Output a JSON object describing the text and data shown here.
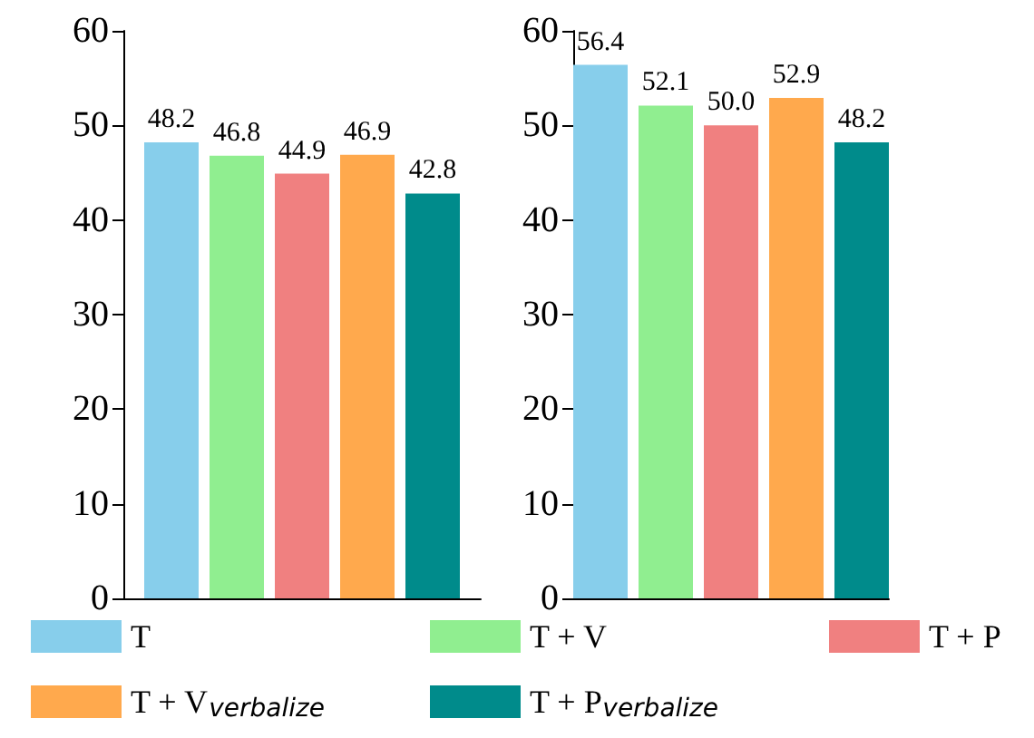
{
  "chart_data": [
    {
      "type": "bar",
      "categories": [
        null
      ],
      "ylim": [
        0,
        60
      ],
      "yticks": [
        0,
        10,
        20,
        30,
        40,
        50,
        60
      ],
      "data_labels": true,
      "grid": false,
      "legend": "bottom",
      "series": [
        {
          "name": "T",
          "color": "#87ceeb",
          "values": [
            48.2
          ]
        },
        {
          "name": "T + V",
          "color": "#90ee90",
          "values": [
            46.8
          ]
        },
        {
          "name": "T + P",
          "color": "#f08080",
          "values": [
            44.9
          ]
        },
        {
          "name": "T + V$_{verbalize}$",
          "color": "#ffa94d",
          "values": [
            46.9
          ]
        },
        {
          "name": "T + P$_{verbalize}$",
          "color": "#008b8b",
          "values": [
            42.8
          ]
        }
      ]
    },
    {
      "type": "bar",
      "categories": [
        null
      ],
      "ylim": [
        0,
        60
      ],
      "yticks": [
        0,
        10,
        20,
        30,
        40,
        50,
        60
      ],
      "data_labels": true,
      "grid": false,
      "series": [
        {
          "color": "#87ceeb",
          "values": [
            56.4
          ]
        },
        {
          "color": "#90ee90",
          "values": [
            52.1
          ]
        },
        {
          "color": "#f08080",
          "values": [
            50.0
          ],
          "value_labels": [
            "50.0"
          ]
        },
        {
          "color": "#ffa94d",
          "values": [
            52.9
          ]
        },
        {
          "color": "#008b8b",
          "values": [
            48.2
          ]
        }
      ]
    }
  ]
}
